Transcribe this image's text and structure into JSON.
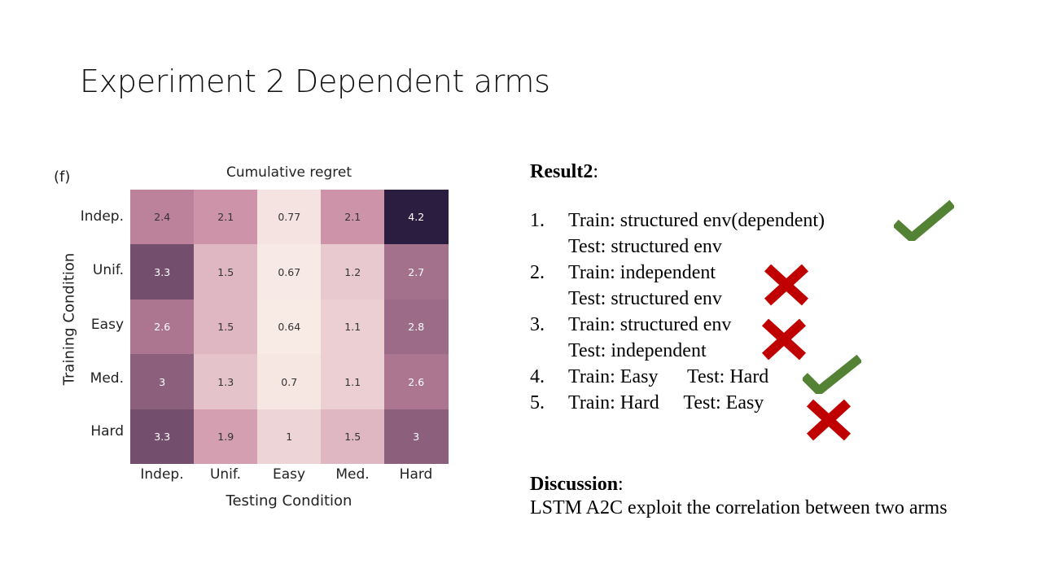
{
  "slide": {
    "title": "Experiment 2 Dependent arms"
  },
  "figure": {
    "panel_label": "(f)"
  },
  "chart_data": {
    "type": "heatmap",
    "title": "Cumulative regret",
    "xlabel": "Testing Condition",
    "ylabel": "Training Condition",
    "columns": [
      "Indep.",
      "Unif.",
      "Easy",
      "Med.",
      "Hard"
    ],
    "rows": [
      "Indep.",
      "Unif.",
      "Easy",
      "Med.",
      "Hard"
    ],
    "values": [
      [
        2.4,
        2.1,
        0.77,
        2.1,
        4.2
      ],
      [
        3.3,
        1.5,
        0.67,
        1.2,
        2.7
      ],
      [
        2.6,
        1.5,
        0.64,
        1.1,
        2.8
      ],
      [
        3,
        1.3,
        0.7,
        1.1,
        2.6
      ],
      [
        3.3,
        1.9,
        1,
        1.5,
        3
      ]
    ],
    "color_range": [
      0.64,
      4.2
    ],
    "colormap_low": "#f8ebe6",
    "colormap_mid": "#c98aa3",
    "colormap_high": "#2b1d3f"
  },
  "result": {
    "heading": "Result2",
    "colon": ":",
    "items": [
      {
        "num": "1.",
        "line1": "Train: structured env(dependent)",
        "line2": "Test: structured env",
        "mark": "check-icon"
      },
      {
        "num": "2.",
        "line1": "Train: independent",
        "line2": "Test: structured env",
        "mark": "cross-icon"
      },
      {
        "num": "3.",
        "line1": "Train: structured env",
        "line2": "Test: independent",
        "mark": "cross-icon"
      },
      {
        "num": "4.",
        "line1": "Train: Easy      Test: Hard",
        "mark": "check-icon"
      },
      {
        "num": "5.",
        "line1": "Train: Hard     Test: Easy",
        "mark": "cross-icon"
      }
    ]
  },
  "discussion": {
    "heading": "Discussion",
    "colon": ":",
    "text": "LSTM A2C exploit the correlation between two arms"
  },
  "colors": {
    "check": "#548235",
    "cross": "#c00000"
  }
}
